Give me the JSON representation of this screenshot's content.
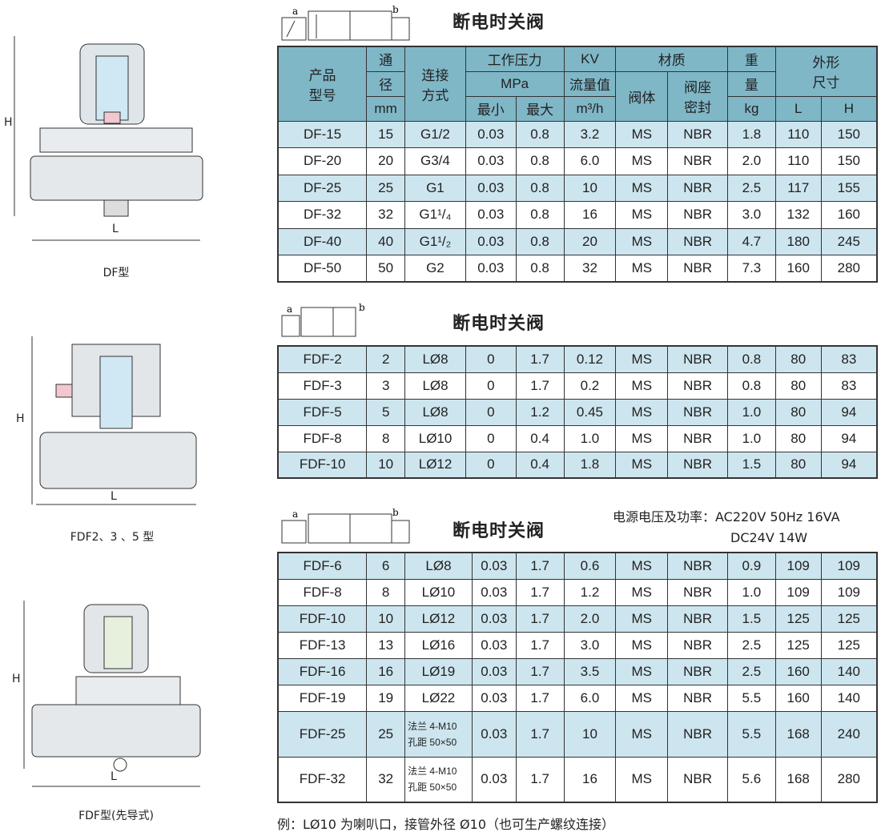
{
  "drawings": [
    {
      "label": "DF型"
    },
    {
      "label": "FDF2、3 、5 型"
    },
    {
      "label": "FDF型(先导式)"
    }
  ],
  "dims": {
    "h": "H",
    "l": "L"
  },
  "symbol": {
    "a": "a",
    "b": "b"
  },
  "section_title": "断电时关阀",
  "header": {
    "model": "产品\n型号",
    "bore": [
      "通",
      "径",
      "mm"
    ],
    "conn": "连接\n方式",
    "pressure": "工作压力",
    "pressure_unit": "MPa",
    "min": "最小",
    "max": "最大",
    "kv": "KV",
    "kv2": "流量值",
    "kv_unit": "m³/h",
    "material": "材质",
    "body": "阀体",
    "seat": "阀座\n密封",
    "weight": [
      "重",
      "量",
      "kg"
    ],
    "size": "外形\n尺寸",
    "L": "L",
    "H": "H"
  },
  "power": {
    "line1": "电源电压及功率：AC220V  50Hz  16VA",
    "line2": "DC24V  14W"
  },
  "table1": [
    [
      "DF-15",
      "15",
      "G1/2",
      "0.03",
      "0.8",
      "3.2",
      "MS",
      "NBR",
      "1.8",
      "110",
      "150"
    ],
    [
      "DF-20",
      "20",
      "G3/4",
      "0.03",
      "0.8",
      "6.0",
      "MS",
      "NBR",
      "2.0",
      "110",
      "150"
    ],
    [
      "DF-25",
      "25",
      "G1",
      "0.03",
      "0.8",
      "10",
      "MS",
      "NBR",
      "2.5",
      "117",
      "155"
    ],
    [
      "DF-32",
      "32",
      "G1¹/₄",
      "0.03",
      "0.8",
      "16",
      "MS",
      "NBR",
      "3.0",
      "132",
      "160"
    ],
    [
      "DF-40",
      "40",
      "G1¹/₂",
      "0.03",
      "0.8",
      "20",
      "MS",
      "NBR",
      "4.7",
      "180",
      "245"
    ],
    [
      "DF-50",
      "50",
      "G2",
      "0.03",
      "0.8",
      "32",
      "MS",
      "NBR",
      "7.3",
      "160",
      "280"
    ]
  ],
  "table2": [
    [
      "FDF-2",
      "2",
      "LØ8",
      "0",
      "1.7",
      "0.12",
      "MS",
      "NBR",
      "0.8",
      "80",
      "83"
    ],
    [
      "FDF-3",
      "3",
      "LØ8",
      "0",
      "1.7",
      "0.2",
      "MS",
      "NBR",
      "0.8",
      "80",
      "83"
    ],
    [
      "FDF-5",
      "5",
      "LØ8",
      "0",
      "1.2",
      "0.45",
      "MS",
      "NBR",
      "1.0",
      "80",
      "94"
    ],
    [
      "FDF-8",
      "8",
      "LØ10",
      "0",
      "0.4",
      "1.0",
      "MS",
      "NBR",
      "1.0",
      "80",
      "94"
    ],
    [
      "FDF-10",
      "10",
      "LØ12",
      "0",
      "0.4",
      "1.8",
      "MS",
      "NBR",
      "1.5",
      "80",
      "94"
    ]
  ],
  "table3": [
    [
      "FDF-6",
      "6",
      "LØ8",
      "0.03",
      "1.7",
      "0.6",
      "MS",
      "NBR",
      "0.9",
      "109",
      "109"
    ],
    [
      "FDF-8",
      "8",
      "LØ10",
      "0.03",
      "1.7",
      "1.2",
      "MS",
      "NBR",
      "1.0",
      "109",
      "109"
    ],
    [
      "FDF-10",
      "10",
      "LØ12",
      "0.03",
      "1.7",
      "2.0",
      "MS",
      "NBR",
      "1.5",
      "125",
      "125"
    ],
    [
      "FDF-13",
      "13",
      "LØ16",
      "0.03",
      "1.7",
      "3.0",
      "MS",
      "NBR",
      "2.5",
      "125",
      "125"
    ],
    [
      "FDF-16",
      "16",
      "LØ19",
      "0.03",
      "1.7",
      "3.5",
      "MS",
      "NBR",
      "2.5",
      "160",
      "140"
    ],
    [
      "FDF-19",
      "19",
      "LØ22",
      "0.03",
      "1.7",
      "6.0",
      "MS",
      "NBR",
      "5.5",
      "160",
      "140"
    ],
    [
      "FDF-25",
      "25",
      "法兰 4-M10\n孔距 50×50",
      "0.03",
      "1.7",
      "10",
      "MS",
      "NBR",
      "5.5",
      "168",
      "240"
    ],
    [
      "FDF-32",
      "32",
      "法兰 4-M10\n孔距 50×50",
      "0.03",
      "1.7",
      "16",
      "MS",
      "NBR",
      "5.6",
      "168",
      "280"
    ]
  ],
  "footnote": "例：LØ10 为喇叭口，接管外径 Ø10（也可生产螺纹连接）"
}
